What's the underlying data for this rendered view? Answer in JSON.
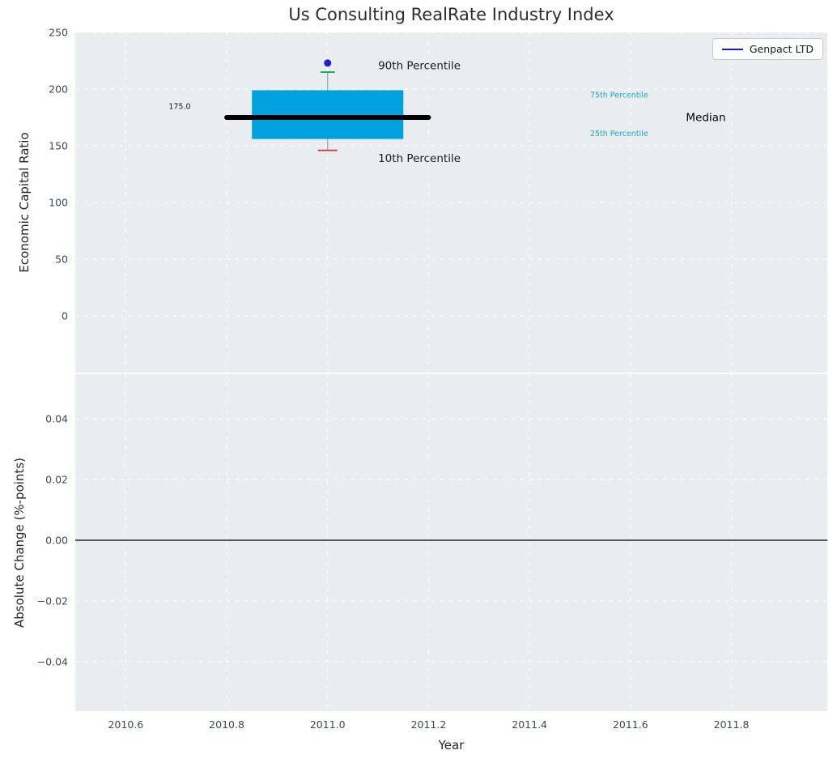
{
  "title": "Us Consulting RealRate Industry Index",
  "style": {
    "figure_bg": "#ffffff",
    "axes_bg": "#e9edf0",
    "grid_color": "#ffffff",
    "tick_color": "#3d4758",
    "label_color": "#262626",
    "title_color": "#2d2d2d"
  },
  "legend": {
    "items": [
      {
        "label": "Genpact LTD",
        "color": "#1a1aca"
      }
    ],
    "position": "upper right"
  },
  "chart_data": [
    {
      "type": "box",
      "title": "Us Consulting RealRate Industry Index",
      "ylabel": "Economic Capital Ratio",
      "ylim": [
        -50,
        250
      ],
      "xlim": [
        2010.5,
        2011.99
      ],
      "grid": true,
      "yticks": [
        {
          "value": 0,
          "label": "0"
        },
        {
          "value": 50,
          "label": "50"
        },
        {
          "value": 100,
          "label": "100"
        },
        {
          "value": 150,
          "label": "150"
        },
        {
          "value": 200,
          "label": "200"
        },
        {
          "value": 250,
          "label": "250"
        }
      ],
      "box": {
        "x": 2011.0,
        "p10": 146,
        "q1": 156,
        "median": 175,
        "q3": 199,
        "p90": 215,
        "box_left": 2010.85,
        "box_right": 2011.15,
        "median_left": 2010.8,
        "median_right": 2011.2
      },
      "series": [
        {
          "name": "Genpact LTD",
          "points": [
            {
              "x": 2011.0,
              "y": 223
            }
          ]
        }
      ],
      "colors": {
        "box": "#00a1dc",
        "median": "#000000",
        "whisker": "#8fa3b4",
        "p90_cap": "#00a64f",
        "p10_cap": "#e03030",
        "company_dot": "#2020cf"
      },
      "annotations": [
        {
          "name": "median-value-label",
          "text": "175.0",
          "x": 2010.685,
          "y": 185,
          "color": "#1a1a1a",
          "size": 9.5
        },
        {
          "name": "p90-annotation",
          "text": "90th Percentile",
          "x": 2011.1,
          "y": 221,
          "color": "#1a1a1a",
          "size": 13.5
        },
        {
          "name": "p10-annotation",
          "text": "10th Percentile",
          "x": 2011.1,
          "y": 139,
          "color": "#1a1a1a",
          "size": 13.5
        },
        {
          "name": "p75-annotation",
          "text": "75th Percentile",
          "x": 2011.52,
          "y": 195,
          "color": "#1da9c7",
          "size": 9.5
        },
        {
          "name": "p25-annotation",
          "text": "25th Percentile",
          "x": 2011.52,
          "y": 161,
          "color": "#1da9c7",
          "size": 9.5
        },
        {
          "name": "median-annotation",
          "text": "Median",
          "x": 2011.71,
          "y": 175,
          "color": "#000000",
          "size": 13.5
        }
      ]
    },
    {
      "type": "line",
      "ylabel": "Absolute Change (%-points)",
      "xlabel": "Year",
      "ylim": [
        -0.0563,
        0.0547
      ],
      "xlim": [
        2010.5,
        2011.99
      ],
      "grid": true,
      "zero_line": 0.0,
      "yticks": [
        {
          "value": -0.04,
          "label": "−0.04"
        },
        {
          "value": -0.02,
          "label": "−0.02"
        },
        {
          "value": 0.0,
          "label": "0.00"
        },
        {
          "value": 0.02,
          "label": "0.02"
        },
        {
          "value": 0.04,
          "label": "0.04"
        }
      ],
      "xticks": [
        {
          "value": 2010.6,
          "label": "2010.6"
        },
        {
          "value": 2010.8,
          "label": "2010.8"
        },
        {
          "value": 2011.0,
          "label": "2011.0"
        },
        {
          "value": 2011.2,
          "label": "2011.2"
        },
        {
          "value": 2011.4,
          "label": "2011.4"
        },
        {
          "value": 2011.6,
          "label": "2011.6"
        },
        {
          "value": 2011.8,
          "label": "2011.8"
        }
      ],
      "series": []
    }
  ]
}
